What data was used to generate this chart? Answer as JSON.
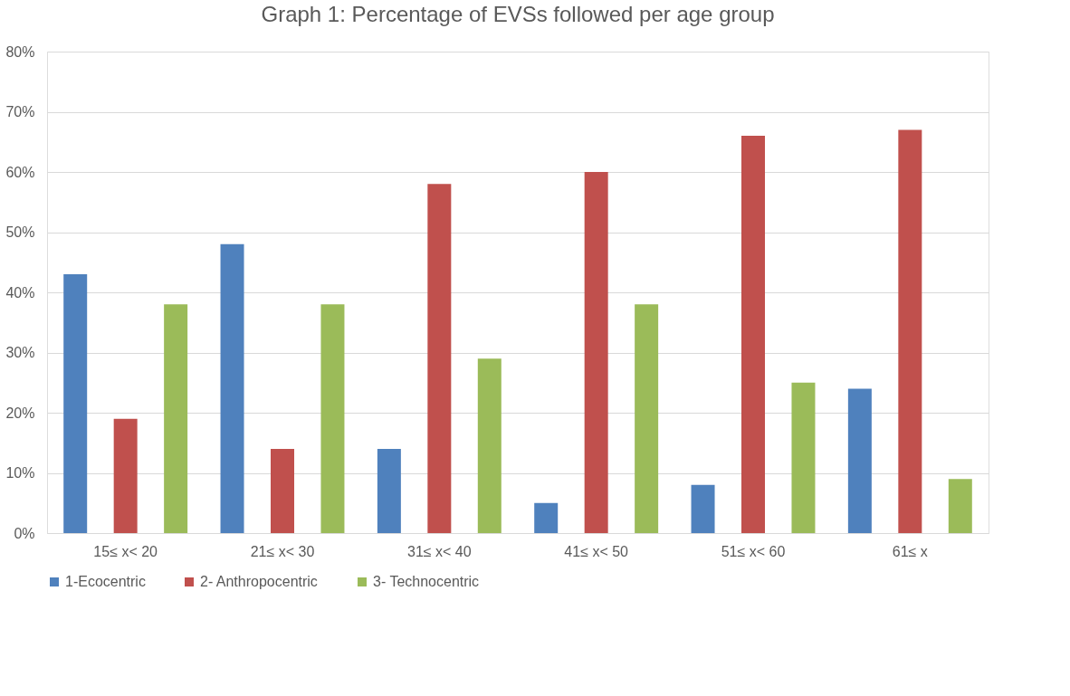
{
  "chart_data": {
    "type": "bar",
    "title": "Graph 1: Percentage of EVSs followed per age group",
    "categories": [
      "15≤ x< 20",
      "21≤ x< 30",
      "31≤ x< 40",
      "41≤ x< 50",
      "51≤ x< 60",
      "61≤ x"
    ],
    "series": [
      {
        "name": "1-Ecocentric",
        "color": "#4f81bd",
        "values": [
          43,
          48,
          14,
          5,
          8,
          24
        ]
      },
      {
        "name": "2- Anthropocentric",
        "color": "#c0504d",
        "values": [
          19,
          14,
          58,
          60,
          66,
          67
        ]
      },
      {
        "name": "3- Technocentric",
        "color": "#9bbb59",
        "values": [
          38,
          38,
          29,
          38,
          25,
          9
        ]
      }
    ],
    "ylim": [
      0,
      80
    ],
    "yticks": [
      {
        "value": 0,
        "label": "0%"
      },
      {
        "value": 10,
        "label": "10%"
      },
      {
        "value": 20,
        "label": "20%"
      },
      {
        "value": 30,
        "label": "30%"
      },
      {
        "value": 40,
        "label": "40%"
      },
      {
        "value": 50,
        "label": "50%"
      },
      {
        "value": 60,
        "label": "60%"
      },
      {
        "value": 70,
        "label": "70%"
      },
      {
        "value": 80,
        "label": "80%"
      }
    ],
    "grid": "y",
    "legend": "bottom"
  }
}
